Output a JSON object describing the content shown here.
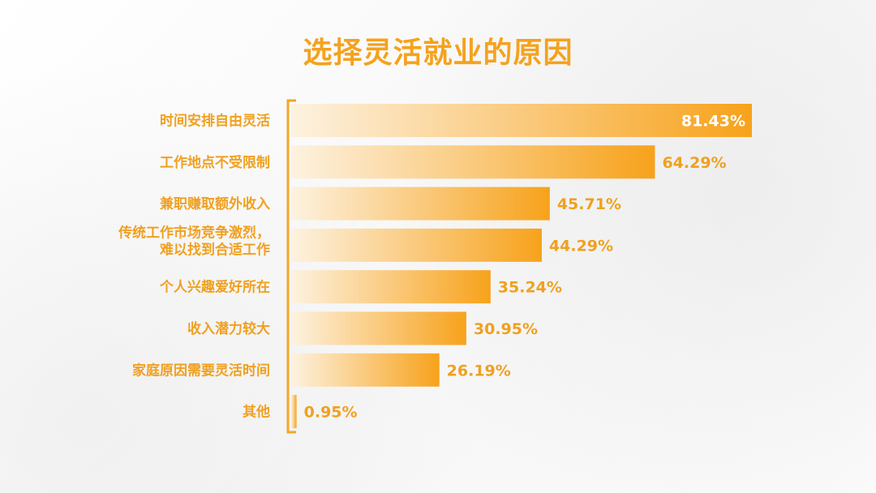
{
  "chart_data": {
    "type": "bar",
    "orientation": "horizontal",
    "title": "选择灵活就业的原因",
    "categories": [
      [
        "时间安排自由灵活"
      ],
      [
        "工作地点不受限制"
      ],
      [
        "兼职赚取额外收入"
      ],
      [
        "传统工作市场竞争激烈，",
        "难以找到合适工作"
      ],
      [
        "个人兴趣爱好所在"
      ],
      [
        "收入潜力较大"
      ],
      [
        "家庭原因需要灵活时间"
      ],
      [
        "其他"
      ]
    ],
    "values": [
      81.43,
      64.29,
      45.71,
      44.29,
      35.24,
      30.95,
      26.19,
      0.95
    ],
    "value_labels": [
      "81.43%",
      "64.29%",
      "45.71%",
      "44.29%",
      "35.24%",
      "30.95%",
      "26.19%",
      "0.95%"
    ],
    "xlim": [
      0,
      81.43
    ],
    "grid": false,
    "legend": "none",
    "colors": {
      "title": "#f5a21d",
      "bar_start": "#fdf2e0",
      "bar_end": "#f7a21b",
      "axis": "#f5a623",
      "label": "#f0a020",
      "value_inside": "#ffffff",
      "value_outside": "#f0a020"
    }
  }
}
